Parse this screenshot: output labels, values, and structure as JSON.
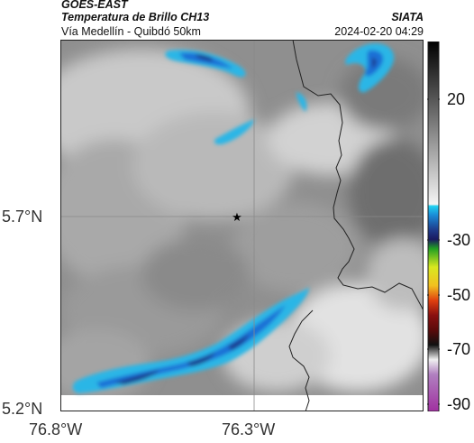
{
  "header": {
    "satellite": "GOES-EAST",
    "product": "Temperatura de Brillo CH13",
    "region": "Vía Medellín - Quibdó 50km",
    "brand": "SIATA",
    "timestamp": "2024-02-20 04:29"
  },
  "axes": {
    "lat_ticks": [
      "5.7°N",
      "5.2°N"
    ],
    "lon_ticks": [
      "76.8°W",
      "76.3°W"
    ]
  },
  "map": {
    "marker": "star-icon",
    "colors": {
      "cloud_dark": "#1e3a8a",
      "cloud_mid": "#1f6fd6",
      "cloud_light": "#29b6e6",
      "border": "#222222",
      "grid": "#8a8a8a"
    }
  },
  "colorbar": {
    "labels": [
      "20",
      "-30",
      "-50",
      "-70",
      "-90"
    ],
    "range": [
      40,
      -95
    ],
    "unit": ""
  }
}
